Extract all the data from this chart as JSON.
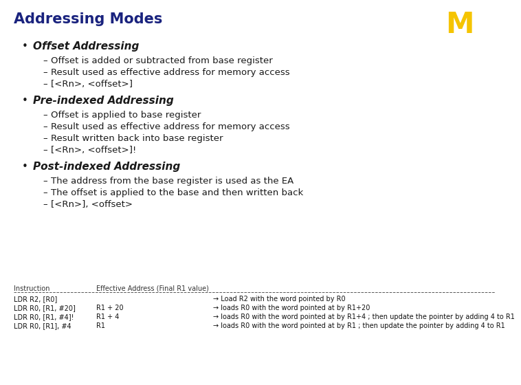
{
  "title": "Addressing Modes",
  "title_color": "#1a237e",
  "bg_color": "#ffffff",
  "bullet_color": "#1a1a1a",
  "heading_color": "#1a1a1a",
  "text_color": "#1a1a1a",
  "logo_color": "#f5c400",
  "title_fs": 15,
  "heading_fs": 11,
  "sub_fs": 9.5,
  "table_fs": 7,
  "bullets": [
    {
      "heading": "Offset Addressing",
      "sub": [
        "Offset is added or subtracted from base register",
        "Result used as effective address for memory access",
        "[<Rn>, <offset>]"
      ]
    },
    {
      "heading": "Pre-indexed Addressing",
      "sub": [
        "Offset is applied to base register",
        "Result used as effective address for memory access",
        "Result written back into base register",
        "[<Rn>, <offset>]!"
      ]
    },
    {
      "heading": "Post-indexed Addressing",
      "sub": [
        "The address from the base register is used as the EA",
        "The offset is applied to the base and then written back",
        "[<Rn>], <offset>"
      ]
    }
  ],
  "table_header_col1": "Instruction",
  "table_header_col2": "Effective Address (Final R1 value)",
  "table_rows": [
    [
      "LDR R2, [R0]",
      "",
      "→ Load R2 with the word pointed by R0"
    ],
    [
      "LDR R0, [R1, #20]",
      "R1 + 20",
      "→ loads R0 with the word pointed at by R1+20"
    ],
    [
      "LDR R0, [R1, #4]!",
      "R1 + 4",
      "→ loads R0 with the word pointed at by R1+4 ; then update the pointer by adding 4 to R1"
    ],
    [
      "LDR R0, [R1], #4",
      "R1",
      "→ loads R0 with the word pointed at by R1 ; then update the pointer by adding 4 to R1"
    ]
  ]
}
